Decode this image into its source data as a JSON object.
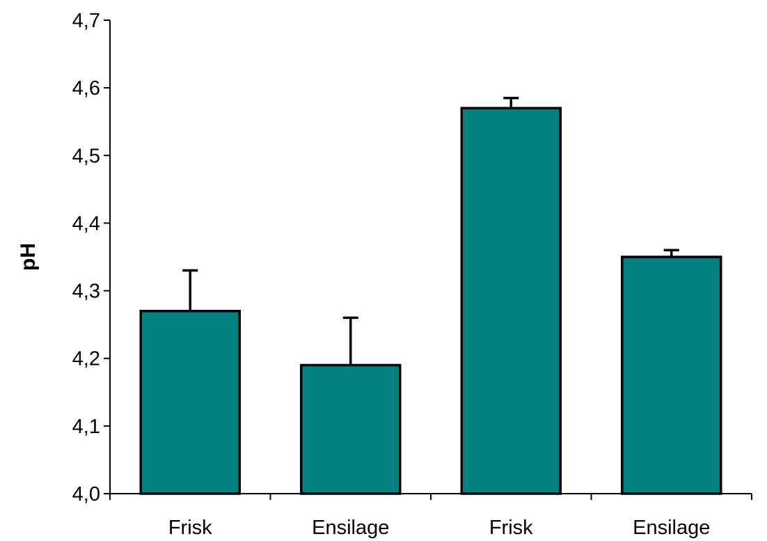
{
  "chart_data": {
    "type": "bar",
    "title": "",
    "xlabel": "",
    "ylabel": "pH",
    "ylim": [
      4.0,
      4.7
    ],
    "yticks": [
      "4,0",
      "4,1",
      "4,2",
      "4,3",
      "4,4",
      "4,5",
      "4,6",
      "4,7"
    ],
    "categories": [
      "Frisk",
      "Ensilage",
      "Frisk",
      "Ensilage"
    ],
    "values": [
      4.27,
      4.19,
      4.57,
      4.35
    ],
    "error_upper": [
      0.06,
      0.07,
      0.015,
      0.01
    ],
    "bar_color": "#008080",
    "grid": false,
    "legend": "none"
  }
}
